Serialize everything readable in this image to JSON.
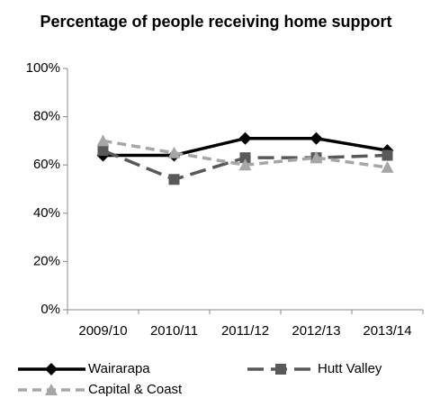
{
  "chart_data": {
    "type": "line",
    "title": "Percentage of people receiving home support",
    "categories": [
      "2009/10",
      "2010/11",
      "2011/12",
      "2012/13",
      "2013/14"
    ],
    "series": [
      {
        "name": "Wairarapa",
        "color": "#000000",
        "marker": "diamond",
        "dash": "solid",
        "values": [
          64,
          64,
          71,
          71,
          66
        ]
      },
      {
        "name": "Hutt Valley",
        "color": "#595959",
        "marker": "square",
        "dash": "longdash",
        "values": [
          66,
          54,
          63,
          63,
          64
        ]
      },
      {
        "name": "Capital & Coast",
        "color": "#a6a6a6",
        "marker": "triangle",
        "dash": "dash",
        "values": [
          70,
          65,
          60,
          63,
          59
        ]
      }
    ],
    "ylim": [
      0,
      100
    ],
    "yticks": [
      {
        "value": 0,
        "label": "0%"
      },
      {
        "value": 20,
        "label": "20%"
      },
      {
        "value": 40,
        "label": "40%"
      },
      {
        "value": 60,
        "label": "60%"
      },
      {
        "value": 80,
        "label": "80%"
      },
      {
        "value": 100,
        "label": "100%"
      }
    ],
    "grid": false,
    "legend": "bottom"
  }
}
